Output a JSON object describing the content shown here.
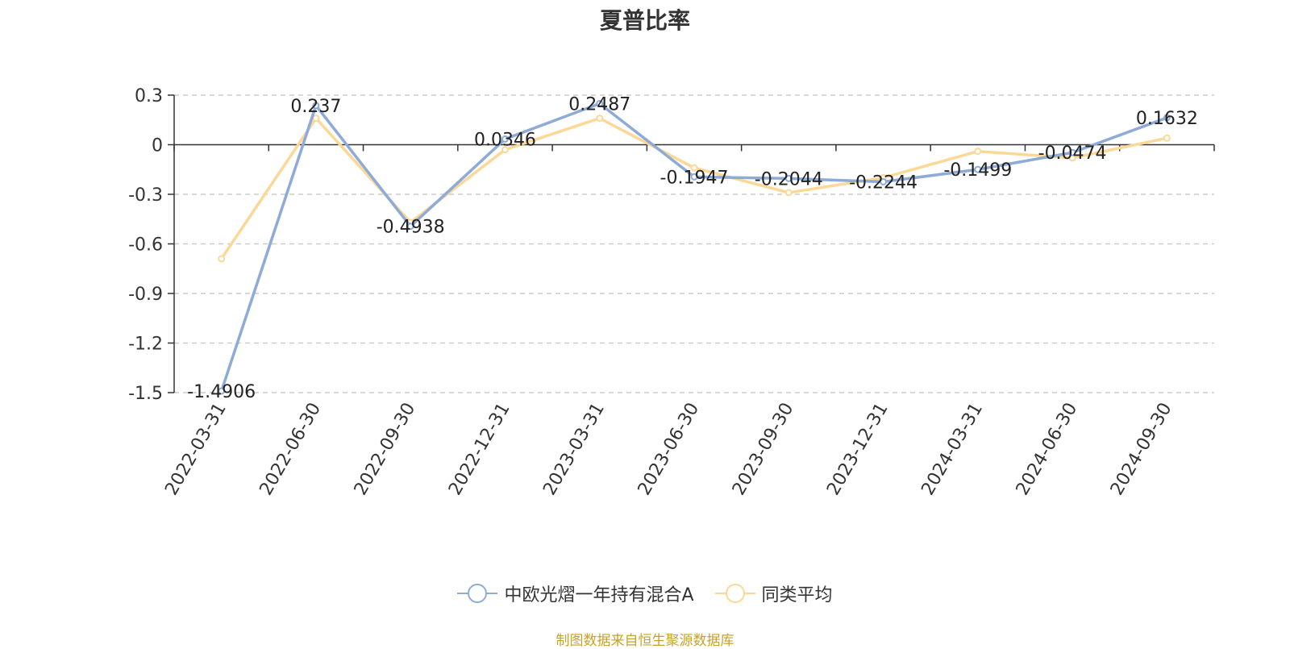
{
  "chart_data": {
    "type": "line",
    "title": "夏普比率",
    "categories": [
      "2022-03-31",
      "2022-06-30",
      "2022-09-30",
      "2022-12-31",
      "2023-03-31",
      "2023-06-30",
      "2023-09-30",
      "2023-12-31",
      "2024-03-31",
      "2024-06-30",
      "2024-09-30"
    ],
    "series": [
      {
        "name": "中欧光熠一年持有混合A",
        "color": "#8eaad9",
        "values": [
          -1.4906,
          0.237,
          -0.4938,
          0.0346,
          0.2487,
          -0.1947,
          -0.2044,
          -0.2244,
          -0.1499,
          -0.0474,
          0.1632
        ],
        "labels": [
          "-1.4906",
          "0.237",
          "-0.4938",
          "0.0346",
          "0.2487",
          "-0.1947",
          "-0.2044",
          "-0.2244",
          "-0.1499",
          "-0.0474",
          "0.1632"
        ]
      },
      {
        "name": "同类平均",
        "color": "#fbd896",
        "values": [
          -0.69,
          0.16,
          -0.47,
          -0.03,
          0.16,
          -0.14,
          -0.29,
          -0.2,
          -0.04,
          -0.08,
          0.04
        ]
      }
    ],
    "ylim": [
      -1.5,
      0.3
    ],
    "yticks": [
      "0.3",
      "0",
      "-0.3",
      "-0.6",
      "-0.9",
      "-1.2",
      "-1.5"
    ],
    "ytick_values": [
      0.3,
      0,
      -0.3,
      -0.6,
      -0.9,
      -1.2,
      -1.5
    ],
    "grid": true,
    "legend_position": "bottom-center"
  },
  "legend": {
    "items": [
      {
        "label": "中欧光熠一年持有混合A",
        "color": "#8eaad9"
      },
      {
        "label": "同类平均",
        "color": "#fbd896"
      }
    ]
  },
  "source": "制图数据来自恒生聚源数据库"
}
